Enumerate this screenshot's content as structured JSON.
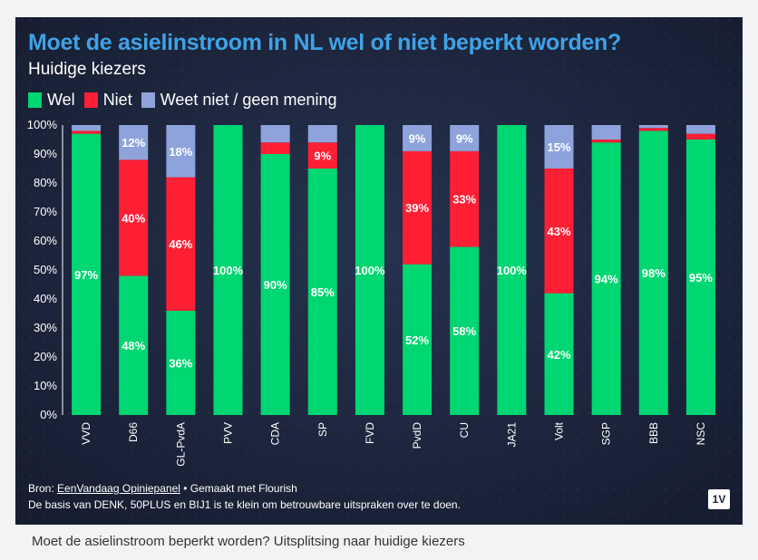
{
  "title": "Moet de asielinstroom in NL wel of niet beperkt worden?",
  "subtitle": "Huidige kiezers",
  "legend": [
    {
      "label": "Wel",
      "color": "#00d672"
    },
    {
      "label": "Niet",
      "color": "#ff1f35"
    },
    {
      "label": "Weet niet / geen mening",
      "color": "#8ea3dc"
    }
  ],
  "chart_data": {
    "type": "bar",
    "stacked": true,
    "categories": [
      "VVD",
      "D66",
      "GL-PvdA",
      "PVV",
      "CDA",
      "SP",
      "FVD",
      "PvdD",
      "CU",
      "JA21",
      "Volt",
      "SGP",
      "BBB",
      "NSC"
    ],
    "series": [
      {
        "name": "Wel",
        "color": "#00d672",
        "values": [
          97,
          48,
          36,
          100,
          90,
          85,
          100,
          52,
          58,
          100,
          42,
          94,
          98,
          95
        ]
      },
      {
        "name": "Niet",
        "color": "#ff1f35",
        "values": [
          1,
          40,
          46,
          0,
          4,
          9,
          0,
          39,
          33,
          0,
          43,
          1,
          1,
          2
        ]
      },
      {
        "name": "Weet niet / geen mening",
        "color": "#8ea3dc",
        "values": [
          2,
          12,
          18,
          0,
          6,
          6,
          0,
          9,
          9,
          0,
          15,
          5,
          1,
          3
        ]
      }
    ],
    "data_labels": [
      [
        "97%",
        "48%",
        "36%",
        "100%",
        "90%",
        "85%",
        "100%",
        "52%",
        "58%",
        "100%",
        "42%",
        "94%",
        "98%",
        "95%"
      ],
      [
        "",
        "40%",
        "46%",
        "",
        "",
        "9%",
        "",
        "39%",
        "33%",
        "",
        "43%",
        "",
        "",
        ""
      ],
      [
        "",
        "12%",
        "18%",
        "",
        "",
        "",
        "",
        "9%",
        "9%",
        "",
        "15%",
        "",
        "",
        ""
      ]
    ],
    "y_ticks": [
      "0%",
      "10%",
      "20%",
      "30%",
      "40%",
      "50%",
      "60%",
      "70%",
      "80%",
      "90%",
      "100%"
    ],
    "ylim": [
      0,
      100
    ],
    "grid": false,
    "legend_position": "top-left"
  },
  "footer": {
    "source_prefix": "Bron: ",
    "source_link": "EenVandaag Opiniepanel",
    "made_with": " • Gemaakt met Flourish",
    "note": "De basis van DENK, 50PLUS en BIJ1 is te klein om betrouwbare uitspraken over te doen."
  },
  "badge": "1V",
  "caption": "Moet de asielinstroom beperkt worden? Uitsplitsing naar huidige kiezers"
}
